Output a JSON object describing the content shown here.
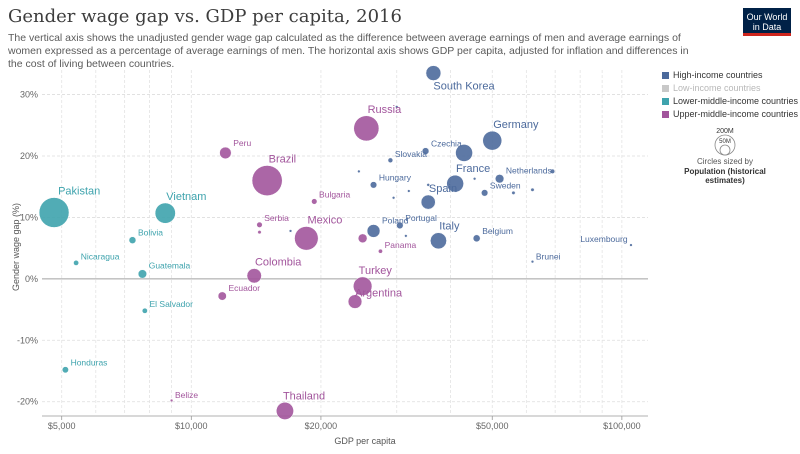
{
  "header": {
    "title": "Gender wage gap vs. GDP per capita, 2016",
    "subtitle": "The vertical axis shows the unadjusted gender wage gap calculated as the difference between average earnings of men and average earnings of women expressed as a percentage of average earnings of men. The horizontal axis shows GDP per capita, adjusted for inflation and differences in the cost of living between countries."
  },
  "logo": {
    "line1": "Our World",
    "line2": "in Data"
  },
  "legend": {
    "groups": [
      {
        "key": "high",
        "label": "High-income countries",
        "color": "#4c6a9c"
      },
      {
        "key": "low",
        "label": "Low-income countries",
        "color": "#c8c8c8"
      },
      {
        "key": "lower",
        "label": "Lower-middle-income countries",
        "color": "#3ea3ad"
      },
      {
        "key": "upper",
        "label": "Upper-middle-income countries",
        "color": "#a2559c"
      }
    ],
    "size": {
      "big": "200M",
      "small": "50M",
      "caption": "Circles sized by",
      "variable": "Population (historical estimates)"
    }
  },
  "chart_data": {
    "type": "scatter",
    "title": "Gender wage gap vs. GDP per capita, 2016",
    "xlabel": "GDP per capita",
    "ylabel": "Gender wage gap (%)",
    "xscale": "log",
    "xlim": [
      4500,
      115000
    ],
    "ylim": [
      -22,
      34
    ],
    "grid": true,
    "x_ticks": [
      5000,
      10000,
      20000,
      50000,
      100000
    ],
    "x_tick_labels": [
      "$5,000",
      "$10,000",
      "$20,000",
      "$50,000",
      "$100,000"
    ],
    "y_ticks": [
      -20,
      -10,
      0,
      10,
      20,
      30
    ],
    "y_tick_labels": [
      "-20%",
      "-10%",
      "0%",
      "10%",
      "20%",
      "30%"
    ],
    "legend_position": "right",
    "points": [
      {
        "label": "South Korea",
        "x": 36500,
        "y": 33.5,
        "pop": 51,
        "group": "high"
      },
      {
        "label": "Germany",
        "x": 50000,
        "y": 22.5,
        "pop": 82,
        "group": "high"
      },
      {
        "label": "Czechia",
        "x": 35000,
        "y": 20.8,
        "pop": 10.6,
        "group": "high"
      },
      {
        "label": "",
        "x": 43000,
        "y": 20.5,
        "pop": 66,
        "group": "high"
      },
      {
        "label": "Slovakia",
        "x": 29000,
        "y": 19.3,
        "pop": 5.4,
        "group": "high"
      },
      {
        "label": "Netherlands",
        "x": 52000,
        "y": 16.3,
        "pop": 17,
        "group": "high"
      },
      {
        "label": "France",
        "x": 41000,
        "y": 15.5,
        "pop": 65,
        "group": "high"
      },
      {
        "label": "Hungary",
        "x": 26500,
        "y": 15.3,
        "pop": 9.8,
        "group": "high"
      },
      {
        "label": "Sweden",
        "x": 48000,
        "y": 14,
        "pop": 9.9,
        "group": "high"
      },
      {
        "label": "Spain",
        "x": 35500,
        "y": 12.5,
        "pop": 46,
        "group": "high"
      },
      {
        "label": "Poland",
        "x": 26500,
        "y": 7.8,
        "pop": 38,
        "group": "high"
      },
      {
        "label": "Portugal",
        "x": 30500,
        "y": 8.7,
        "pop": 10.3,
        "group": "high"
      },
      {
        "label": "Italy",
        "x": 37500,
        "y": 6.2,
        "pop": 60,
        "group": "high"
      },
      {
        "label": "Belgium",
        "x": 46000,
        "y": 6.6,
        "pop": 11.3,
        "group": "high"
      },
      {
        "label": "Brunei",
        "x": 62000,
        "y": 2.8,
        "pop": 0.42,
        "group": "high"
      },
      {
        "label": "Luxembourg",
        "x": 105000,
        "y": 5.5,
        "pop": 0.58,
        "group": "high"
      },
      {
        "label": "",
        "x": 30000,
        "y": 28,
        "pop": 1.3,
        "group": "high"
      },
      {
        "label": "",
        "x": 24500,
        "y": 17.5,
        "pop": 1.3,
        "group": "high"
      },
      {
        "label": "",
        "x": 32000,
        "y": 14.3,
        "pop": 1.3,
        "group": "high"
      },
      {
        "label": "",
        "x": 35500,
        "y": 15.3,
        "pop": 2,
        "group": "high"
      },
      {
        "label": "",
        "x": 45500,
        "y": 16.3,
        "pop": 1.3,
        "group": "high"
      },
      {
        "label": "",
        "x": 56000,
        "y": 14,
        "pop": 2.8,
        "group": "high"
      },
      {
        "label": "",
        "x": 62000,
        "y": 14.5,
        "pop": 2.8,
        "group": "high"
      },
      {
        "label": "",
        "x": 69000,
        "y": 17.5,
        "pop": 4.8,
        "group": "high"
      },
      {
        "label": "",
        "x": 29500,
        "y": 13.2,
        "pop": 1.3,
        "group": "high"
      },
      {
        "label": "",
        "x": 31500,
        "y": 7,
        "pop": 1.3,
        "group": "high"
      },
      {
        "label": "",
        "x": 17000,
        "y": 7.8,
        "pop": 1.3,
        "group": "high"
      },
      {
        "label": "Russia",
        "x": 25500,
        "y": 24.5,
        "pop": 144,
        "group": "upper"
      },
      {
        "label": "Peru",
        "x": 12000,
        "y": 20.5,
        "pop": 31,
        "group": "upper"
      },
      {
        "label": "Brazil",
        "x": 15000,
        "y": 16,
        "pop": 207,
        "group": "upper"
      },
      {
        "label": "Bulgaria",
        "x": 19300,
        "y": 12.6,
        "pop": 7.1,
        "group": "upper"
      },
      {
        "label": "Serbia",
        "x": 14400,
        "y": 8.8,
        "pop": 7,
        "group": "upper"
      },
      {
        "label": "",
        "x": 14400,
        "y": 7.6,
        "pop": 2.9,
        "group": "upper"
      },
      {
        "label": "Mexico",
        "x": 18500,
        "y": 6.6,
        "pop": 127,
        "group": "upper"
      },
      {
        "label": "",
        "x": 25000,
        "y": 6.6,
        "pop": 18,
        "group": "upper"
      },
      {
        "label": "Panama",
        "x": 27500,
        "y": 4.5,
        "pop": 4.1,
        "group": "upper"
      },
      {
        "label": "Colombia",
        "x": 14000,
        "y": 0.5,
        "pop": 48,
        "group": "upper"
      },
      {
        "label": "Turkey",
        "x": 25000,
        "y": -1.2,
        "pop": 79,
        "group": "upper"
      },
      {
        "label": "Argentina",
        "x": 24000,
        "y": -3.7,
        "pop": 43,
        "group": "upper"
      },
      {
        "label": "Ecuador",
        "x": 11800,
        "y": -2.8,
        "pop": 16,
        "group": "upper"
      },
      {
        "label": "Belize",
        "x": 9000,
        "y": -19.8,
        "pop": 0.37,
        "group": "upper"
      },
      {
        "label": "Thailand",
        "x": 16500,
        "y": -21.5,
        "pop": 68,
        "group": "upper"
      },
      {
        "label": "Pakistan",
        "x": 4800,
        "y": 10.8,
        "pop": 203,
        "group": "lower"
      },
      {
        "label": "Vietnam",
        "x": 8700,
        "y": 10.7,
        "pop": 94,
        "group": "lower"
      },
      {
        "label": "Bolivia",
        "x": 7300,
        "y": 6.3,
        "pop": 11,
        "group": "lower"
      },
      {
        "label": "Nicaragua",
        "x": 5400,
        "y": 2.6,
        "pop": 6.2,
        "group": "lower"
      },
      {
        "label": "Guatemala",
        "x": 7700,
        "y": 0.8,
        "pop": 16.6,
        "group": "lower"
      },
      {
        "label": "El Salvador",
        "x": 7800,
        "y": -5.2,
        "pop": 6.3,
        "group": "lower"
      },
      {
        "label": "Honduras",
        "x": 5100,
        "y": -14.8,
        "pop": 9.1,
        "group": "lower"
      }
    ]
  }
}
